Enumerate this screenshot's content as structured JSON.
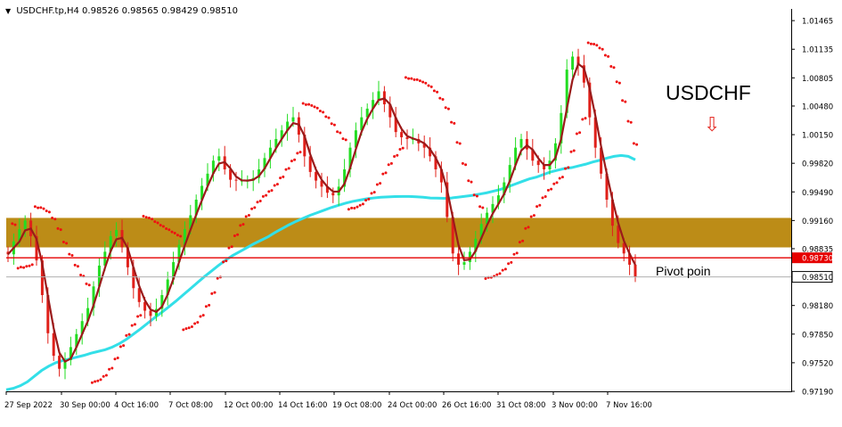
{
  "header": {
    "symbol_line": "USDCHF.tp,H4  0.98526 0.98565 0.98429 0.98510"
  },
  "annotations": {
    "title": "USDCHF",
    "arrow": "⇩",
    "pivot_label": "Pivot poin"
  },
  "colors": {
    "bull_candle": "#22dd22",
    "bear_candle": "#e0201a",
    "fast_ma": "#9b1a1a",
    "slow_ma": "#33dfe8",
    "sar_dots": "#ee1111",
    "zone": "#b8860b",
    "pivot_line": "#e60000",
    "price_badge_red": "#e60000",
    "price_badge_text": "#ffffff"
  },
  "chart_data": {
    "type": "candlestick",
    "symbol": "USDCHF.tp",
    "timeframe": "H4",
    "ohlc_last": {
      "open": 0.98526,
      "high": 0.98565,
      "low": 0.98429,
      "close": 0.9851
    },
    "ylim": [
      0.9719,
      1.016
    ],
    "y_ticks": [
      "1.01465",
      "1.01135",
      "1.00805",
      "1.00480",
      "1.00150",
      "0.99820",
      "0.99490",
      "0.99160",
      "0.98835",
      "0.98730",
      "0.98510",
      "0.98180",
      "0.97850",
      "0.97520",
      "0.97190"
    ],
    "x_ticks": [
      "27 Sep 2022",
      "30 Sep 00:00",
      "4 Oct 16:00",
      "7 Oct 08:00",
      "12 Oct 00:00",
      "14 Oct 16:00",
      "19 Oct 08:00",
      "24 Oct 00:00",
      "26 Oct 16:00",
      "31 Oct 08:00",
      "3 Nov 00:00",
      "7 Nov 16:00"
    ],
    "closes": [
      0.9877,
      0.9892,
      0.9906,
      0.9916,
      0.9898,
      0.987,
      0.983,
      0.9786,
      0.976,
      0.9745,
      0.9755,
      0.977,
      0.9785,
      0.98,
      0.9815,
      0.984,
      0.9864,
      0.988,
      0.9898,
      0.9905,
      0.9885,
      0.9862,
      0.9838,
      0.9822,
      0.9812,
      0.9806,
      0.9814,
      0.983,
      0.9848,
      0.9868,
      0.9888,
      0.9906,
      0.9922,
      0.994,
      0.9956,
      0.997,
      0.9985,
      0.999,
      0.9975,
      0.9963,
      0.9962,
      0.9962,
      0.9962,
      0.9965,
      0.9975,
      0.9988,
      1.0,
      1.001,
      1.002,
      1.003,
      1.0035,
      1.0015,
      0.999,
      0.9972,
      0.9962,
      0.9955,
      0.9948,
      0.9945,
      0.9955,
      0.9975,
      1.0,
      1.002,
      1.0035,
      1.0045,
      1.0055,
      1.0065,
      1.005,
      1.0035,
      1.0018,
      1.0012,
      1.001,
      1.001,
      1.0005,
      1.0,
      0.999,
      0.9975,
      0.996,
      0.992,
      0.9878,
      0.9865,
      0.9868,
      0.988,
      0.9895,
      0.9912,
      0.9925,
      0.9935,
      0.9945,
      0.996,
      0.998,
      1.0,
      1.001,
      0.9998,
      0.9985,
      0.998,
      0.9975,
      0.9985,
      1.0005,
      1.004,
      1.009,
      1.0105,
      1.0095,
      1.0075,
      1.0035,
      1.0,
      0.997,
      0.994,
      0.991,
      0.989,
      0.9878,
      0.9865,
      0.9851
    ],
    "slow_ma": [
      0.97208,
      0.97225,
      0.97255,
      0.973,
      0.97365,
      0.9743,
      0.9748,
      0.9752,
      0.97545,
      0.97565,
      0.97585,
      0.97605,
      0.9763,
      0.9765,
      0.9767,
      0.977,
      0.9774,
      0.9779,
      0.9785,
      0.9791,
      0.97975,
      0.9804,
      0.981,
      0.98165,
      0.9823,
      0.983,
      0.9837,
      0.9844,
      0.9851,
      0.98575,
      0.9864,
      0.987,
      0.98755,
      0.988,
      0.98845,
      0.9889,
      0.9893,
      0.9897,
      0.9902,
      0.99065,
      0.9911,
      0.9915,
      0.99185,
      0.9922,
      0.9925,
      0.9928,
      0.9931,
      0.99335,
      0.9936,
      0.9938,
      0.99395,
      0.9941,
      0.9942,
      0.99428,
      0.99432,
      0.99436,
      0.99438,
      0.99438,
      0.99434,
      0.99428,
      0.9942,
      0.99418,
      0.99416,
      0.9942,
      0.9943,
      0.9944,
      0.9945,
      0.99465,
      0.9948,
      0.995,
      0.9952,
      0.9955,
      0.9958,
      0.9961,
      0.9964,
      0.9966,
      0.9969,
      0.9972,
      0.9974,
      0.9976,
      0.9977,
      0.9979,
      0.9981,
      0.99835,
      0.99855,
      0.9988,
      0.999,
      0.9991,
      0.999,
      0.9986
    ]
  }
}
